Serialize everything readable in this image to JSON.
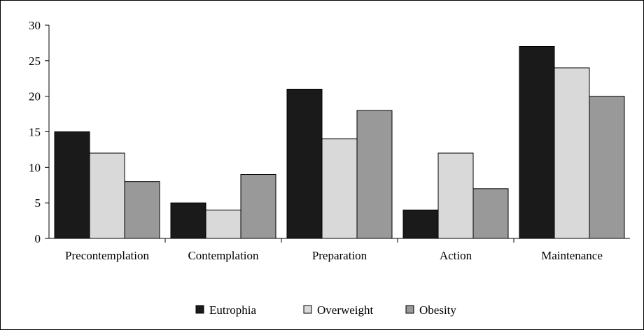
{
  "chart_data": {
    "type": "bar",
    "categories": [
      "Precontemplation",
      "Contemplation",
      "Preparation",
      "Action",
      "Maintenance"
    ],
    "series": [
      {
        "name": "Eutrophia",
        "values": [
          15,
          5,
          21,
          4,
          27
        ],
        "color": "#1a1a1a"
      },
      {
        "name": "Overweight",
        "values": [
          12,
          4,
          14,
          12,
          24
        ],
        "color": "#d9d9d9"
      },
      {
        "name": "Obesity",
        "values": [
          8,
          9,
          18,
          7,
          20
        ],
        "color": "#999999"
      }
    ],
    "title": "",
    "xlabel": "",
    "ylabel": "",
    "ylim": [
      0,
      30
    ],
    "yticks": [
      0,
      5,
      10,
      15,
      20,
      25,
      30
    ],
    "grid": false,
    "legend_position": "bottom"
  }
}
